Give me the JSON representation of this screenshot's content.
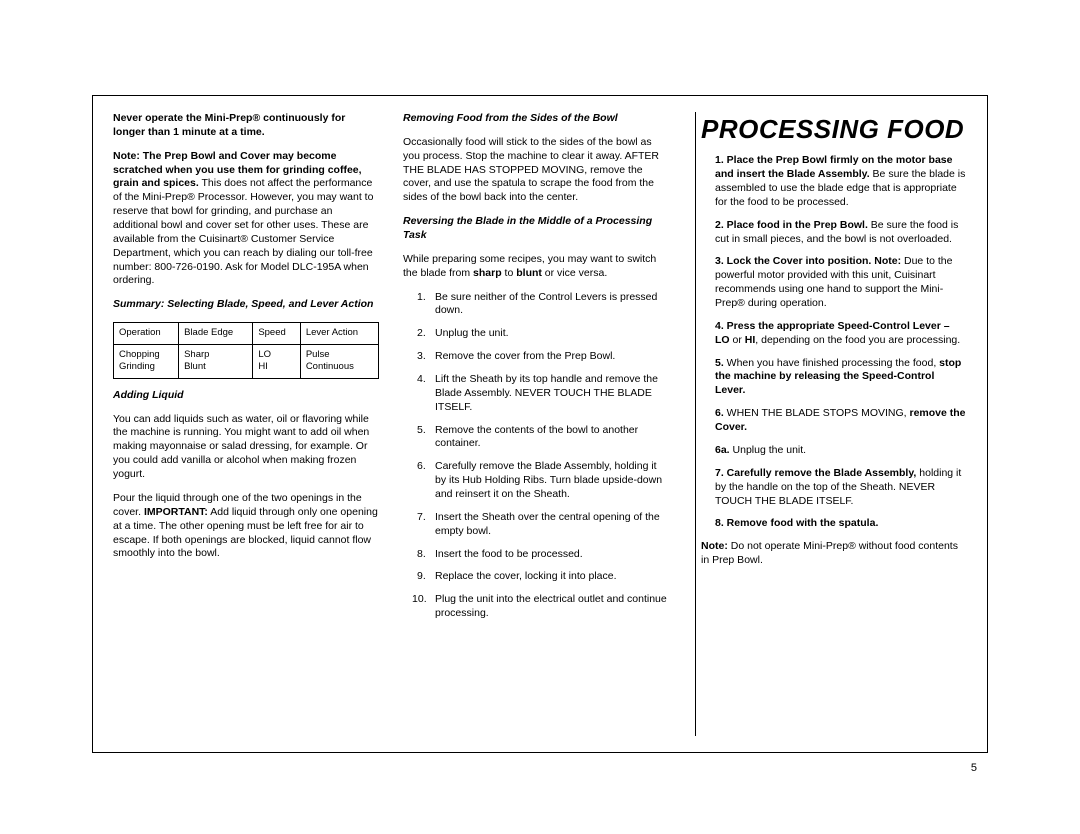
{
  "pageNumber": "5",
  "sectionTitle": "PROCESSING FOOD",
  "col1": {
    "warning": "Never operate the Mini-Prep® continuously for longer than 1 minute at a time.",
    "noteHeader": "Note: The Prep Bowl and Cover may become scratched when you use them for grinding coffee, grain and spices.",
    "noteBody": "This does not affect the performance of the Mini-Prep® Processor. However, you may want to reserve that bowl for grinding, and purchase an additional bowl and cover set for other uses. These are available from the Cuisinart® Customer Service Department, which you can reach by dialing our toll-free number: 800-726-0190. Ask for Model DLC-195A when ordering.",
    "tableTitle": "Summary: Selecting Blade, Speed, and Lever Action",
    "table": {
      "headers": [
        "Operation",
        "Blade Edge",
        "Speed",
        "Lever Action"
      ],
      "row1": [
        "Chopping",
        "Sharp",
        "LO",
        "Pulse"
      ],
      "row2": [
        "Grinding",
        "Blunt",
        "HI",
        "Continuous"
      ]
    },
    "addingLiquidTitle": "Adding Liquid",
    "addingLiquidP1": "You can add liquids such as water, oil or flavoring while the machine is running. You might want to add oil when making mayonnaise or salad dressing, for example. Or you could add vanilla or alcohol when making frozen yogurt.",
    "addingLiquidP2a": "Pour the liquid through one of the two openings in the cover. ",
    "addingLiquidImportant": "IMPORTANT:",
    "addingLiquidP2b": " Add liquid through only one opening at a time. The other opening must be left free for air to escape. If both openings are blocked, liquid cannot flow smoothly into the bowl."
  },
  "col2": {
    "removingTitle": "Removing Food from the Sides of the Bowl",
    "removingBody": "Occasionally food will stick to the sides of the bowl as you process. Stop the machine to clear it away. AFTER THE BLADE HAS STOPPED MOVING, remove the cover, and use the spatula to scrape the food from the sides of the bowl back into the center.",
    "reversingTitle": "Reversing the Blade in the Middle of a Processing Task",
    "reversingIntroA": "While preparing some recipes, you may want to switch the blade from ",
    "reversingSharp": "sharp",
    "reversingIntroB": " to ",
    "reversingBlunt": "blunt",
    "reversingIntroC": " or vice versa.",
    "steps": {
      "s1": "Be sure neither of the Control Levers is pressed down.",
      "s2": "Unplug the unit.",
      "s3": "Remove the cover from the Prep Bowl.",
      "s4": "Lift the Sheath by its top handle and remove the Blade Assembly. NEVER TOUCH THE BLADE ITSELF.",
      "s5": "Remove the contents of the bowl to another container.",
      "s6": "Carefully remove the Blade Assembly, holding it by its Hub Holding Ribs. Turn blade upside-down and reinsert it on the Sheath.",
      "s7": "Insert the Sheath over the central opening of the empty bowl.",
      "s8": "Insert the food to be processed.",
      "s9": "Replace the cover, locking it into place.",
      "s10": "Plug the unit into the electrical outlet and continue processing."
    }
  },
  "col3": {
    "s1a": "1. Place the Prep Bowl firmly on the motor base and insert the Blade Assembly.",
    "s1b": " Be sure the blade is assembled to use the blade edge that is appropriate for the food to be processed.",
    "s2a": "2. Place food in the Prep Bowl.",
    "s2b": " Be sure the food is cut in small pieces, and the bowl is not overloaded.",
    "s3a": "3. Lock the Cover into position. Note:",
    "s3b": " Due to the powerful motor provided with this unit, Cuisinart recommends using one hand to support the Mini-Prep® during operation.",
    "s4a": "4. Press the appropriate Speed-Control Lever – LO",
    "s4b": " or ",
    "s4c": "HI",
    "s4d": ", depending on the food you are processing.",
    "s5a": "5.",
    "s5b": " When you have finished processing the food, ",
    "s5c": "stop the machine by releasing the Speed-Control Lever.",
    "s6a": "6.",
    "s6b": " WHEN THE BLADE STOPS MOVING, ",
    "s6c": "remove the Cover.",
    "s6aLabel": "6a.",
    "s6aBody": " Unplug the unit.",
    "s7a": "7. Carefully remove the Blade Assembly,",
    "s7b": " holding it by the handle on the top of the Sheath. NEVER TOUCH THE BLADE ITSELF.",
    "s8": "8. Remove food with the spatula.",
    "noteA": "Note:",
    "noteB": " Do not operate Mini-Prep® without food contents in Prep Bowl."
  }
}
